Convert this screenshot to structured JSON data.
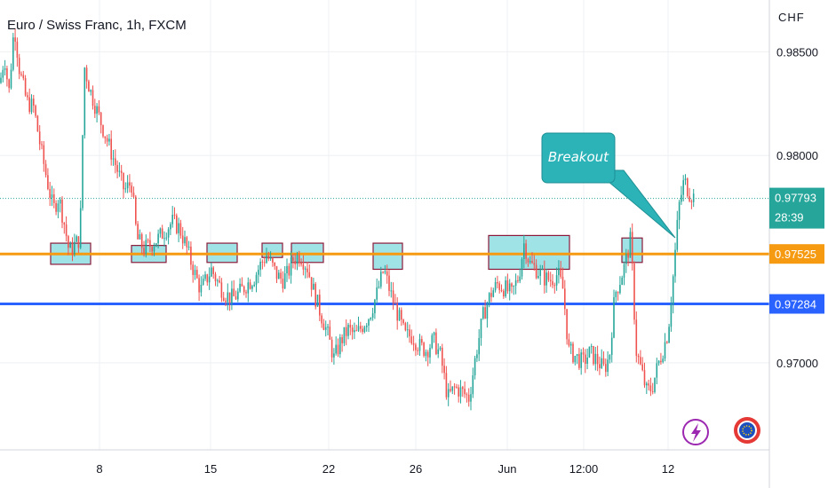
{
  "title": "Euro / Swiss Franc, 1h, FXCM",
  "currency": "CHF",
  "colors": {
    "up": "#26a69a",
    "down": "#ef5350",
    "orange_line": "#f59a11",
    "blue_line": "#2962ff",
    "current": "#26a69a",
    "zone_fill": "#9fe3e6",
    "zone_border": "#8b1a3a",
    "callout": "#2bb3b8",
    "grid": "#eef0f3"
  },
  "price_axis": {
    "labels": [
      "0.98500",
      "0.98000",
      "0.97000"
    ]
  },
  "time_axis": {
    "labels": [
      "8",
      "15",
      "22",
      "26",
      "Jun",
      "12:00",
      "12"
    ]
  },
  "levels": {
    "orange": {
      "value": 0.97525,
      "label": "0.97525"
    },
    "blue": {
      "value": 0.97284,
      "label": "0.97284"
    },
    "current": {
      "value": 0.97793,
      "label": "0.97793",
      "countdown": "28:39"
    }
  },
  "callout": {
    "text": "Breakout"
  },
  "icons": [
    "lightning-icon",
    "eu-flag-icon"
  ],
  "chart_data": {
    "type": "candlestick",
    "title": "Euro / Swiss Franc, 1h, FXCM",
    "ylim": [
      0.9658,
      0.9875
    ],
    "y_ticks": [
      0.985,
      0.98,
      0.97
    ],
    "x_tick_labels": [
      "8",
      "15",
      "22",
      "26",
      "Jun",
      "12:00",
      "12"
    ],
    "close_path": [
      [
        0,
        0.9835
      ],
      [
        5,
        0.9848
      ],
      [
        10,
        0.983
      ],
      [
        16,
        0.9863
      ],
      [
        22,
        0.9841
      ],
      [
        30,
        0.9826
      ],
      [
        38,
        0.9823
      ],
      [
        46,
        0.9803
      ],
      [
        53,
        0.9788
      ],
      [
        60,
        0.9774
      ],
      [
        66,
        0.978
      ],
      [
        72,
        0.9768
      ],
      [
        78,
        0.9753
      ],
      [
        84,
        0.9757
      ],
      [
        90,
        0.976
      ],
      [
        95,
        0.9843
      ],
      [
        101,
        0.9832
      ],
      [
        108,
        0.9823
      ],
      [
        116,
        0.9813
      ],
      [
        124,
        0.9803
      ],
      [
        132,
        0.9793
      ],
      [
        140,
        0.9783
      ],
      [
        148,
        0.9787
      ],
      [
        154,
        0.976
      ],
      [
        162,
        0.9755
      ],
      [
        170,
        0.9757
      ],
      [
        178,
        0.976
      ],
      [
        186,
        0.9764
      ],
      [
        194,
        0.9768
      ],
      [
        202,
        0.9765
      ],
      [
        208,
        0.9758
      ],
      [
        214,
        0.975
      ],
      [
        220,
        0.9742
      ],
      [
        226,
        0.9735
      ],
      [
        232,
        0.974
      ],
      [
        238,
        0.9745
      ],
      [
        246,
        0.9738
      ],
      [
        254,
        0.9733
      ],
      [
        262,
        0.9731
      ],
      [
        270,
        0.9734
      ],
      [
        278,
        0.9738
      ],
      [
        286,
        0.9741
      ],
      [
        294,
        0.9748
      ],
      [
        300,
        0.9752
      ],
      [
        306,
        0.9747
      ],
      [
        312,
        0.9742
      ],
      [
        318,
        0.974
      ],
      [
        324,
        0.9743
      ],
      [
        330,
        0.975
      ],
      [
        338,
        0.9752
      ],
      [
        346,
        0.9746
      ],
      [
        354,
        0.9733
      ],
      [
        360,
        0.9725
      ],
      [
        368,
        0.9715
      ],
      [
        376,
        0.9702
      ],
      [
        384,
        0.9711
      ],
      [
        392,
        0.9716
      ],
      [
        400,
        0.9713
      ],
      [
        408,
        0.9718
      ],
      [
        416,
        0.9723
      ],
      [
        424,
        0.9733
      ],
      [
        432,
        0.9745
      ],
      [
        440,
        0.9733
      ],
      [
        448,
        0.9723
      ],
      [
        456,
        0.9713
      ],
      [
        464,
        0.9713
      ],
      [
        472,
        0.9708
      ],
      [
        480,
        0.9706
      ],
      [
        488,
        0.9711
      ],
      [
        496,
        0.9703
      ],
      [
        504,
        0.9683
      ],
      [
        512,
        0.9688
      ],
      [
        520,
        0.9686
      ],
      [
        528,
        0.9683
      ],
      [
        536,
        0.9705
      ],
      [
        544,
        0.9723
      ],
      [
        552,
        0.9733
      ],
      [
        560,
        0.9738
      ],
      [
        568,
        0.9736
      ],
      [
        576,
        0.9733
      ],
      [
        584,
        0.9742
      ],
      [
        590,
        0.9758
      ],
      [
        596,
        0.9748
      ],
      [
        604,
        0.9745
      ],
      [
        612,
        0.9741
      ],
      [
        620,
        0.974
      ],
      [
        628,
        0.9743
      ],
      [
        634,
        0.9735
      ],
      [
        640,
        0.9706
      ],
      [
        648,
        0.9703
      ],
      [
        656,
        0.97
      ],
      [
        664,
        0.9705
      ],
      [
        672,
        0.9701
      ],
      [
        680,
        0.9697
      ],
      [
        686,
        0.9703
      ],
      [
        692,
        0.9733
      ],
      [
        698,
        0.974
      ],
      [
        704,
        0.9748
      ],
      [
        710,
        0.976
      ],
      [
        716,
        0.9706
      ],
      [
        722,
        0.9696
      ],
      [
        728,
        0.9686
      ],
      [
        734,
        0.9688
      ],
      [
        740,
        0.9698
      ],
      [
        746,
        0.9706
      ],
      [
        752,
        0.9715
      ],
      [
        758,
        0.9743
      ],
      [
        764,
        0.9775
      ],
      [
        770,
        0.9788
      ],
      [
        776,
        0.9782
      ],
      [
        781,
        0.978
      ]
    ],
    "zones": [
      {
        "from": 57,
        "to": 102,
        "low": 0.97475,
        "high": 0.97577
      },
      {
        "from": 148,
        "to": 187,
        "low": 0.97484,
        "high": 0.97566
      },
      {
        "from": 233,
        "to": 267,
        "low": 0.97484,
        "high": 0.97577
      },
      {
        "from": 295,
        "to": 318,
        "low": 0.97508,
        "high": 0.97577
      },
      {
        "from": 328,
        "to": 364,
        "low": 0.97484,
        "high": 0.97577
      },
      {
        "from": 420,
        "to": 453,
        "low": 0.97451,
        "high": 0.97577
      },
      {
        "from": 550,
        "to": 641,
        "low": 0.97451,
        "high": 0.97614
      },
      {
        "from": 700,
        "to": 723,
        "low": 0.97484,
        "high": 0.97602
      }
    ]
  }
}
